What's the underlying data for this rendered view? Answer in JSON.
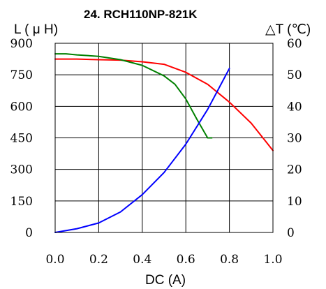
{
  "chart_data": {
    "type": "line",
    "title": "24. RCH110NP-821K",
    "xlabel": "DC (A)",
    "ylabel_left": "L ( μ H)",
    "ylabel_right": "△T (℃)",
    "xlim": [
      0.0,
      1.0
    ],
    "ylim_left": [
      0,
      900
    ],
    "ylim_right": [
      0,
      60
    ],
    "x_ticks": [
      "0.0",
      "0.2",
      "0.4",
      "0.6",
      "0.8",
      "1.0"
    ],
    "y_ticks_left": [
      "0",
      "150",
      "300",
      "450",
      "600",
      "750",
      "900"
    ],
    "y_ticks_right": [
      "0",
      "10",
      "20",
      "30",
      "40",
      "50",
      "60"
    ],
    "grid": true,
    "legend": "none",
    "series": [
      {
        "axis": "left",
        "color": "#ff0000",
        "x": [
          0.0,
          0.1,
          0.2,
          0.3,
          0.4,
          0.5,
          0.6,
          0.7,
          0.8,
          0.9,
          1.0
        ],
        "values": [
          825,
          825,
          822,
          820,
          812,
          800,
          762,
          705,
          620,
          520,
          390
        ]
      },
      {
        "axis": "left",
        "color": "#008000",
        "x": [
          0.0,
          0.05,
          0.1,
          0.2,
          0.3,
          0.4,
          0.5,
          0.55,
          0.6,
          0.65,
          0.7,
          0.72
        ],
        "values": [
          850,
          850,
          845,
          838,
          822,
          795,
          745,
          705,
          635,
          540,
          450,
          450
        ]
      },
      {
        "axis": "right",
        "color": "#0000ff",
        "x": [
          0.0,
          0.1,
          0.2,
          0.3,
          0.4,
          0.5,
          0.6,
          0.7,
          0.8
        ],
        "values": [
          0,
          1.2,
          3.0,
          6.5,
          12,
          19,
          28,
          39,
          52
        ]
      }
    ]
  }
}
